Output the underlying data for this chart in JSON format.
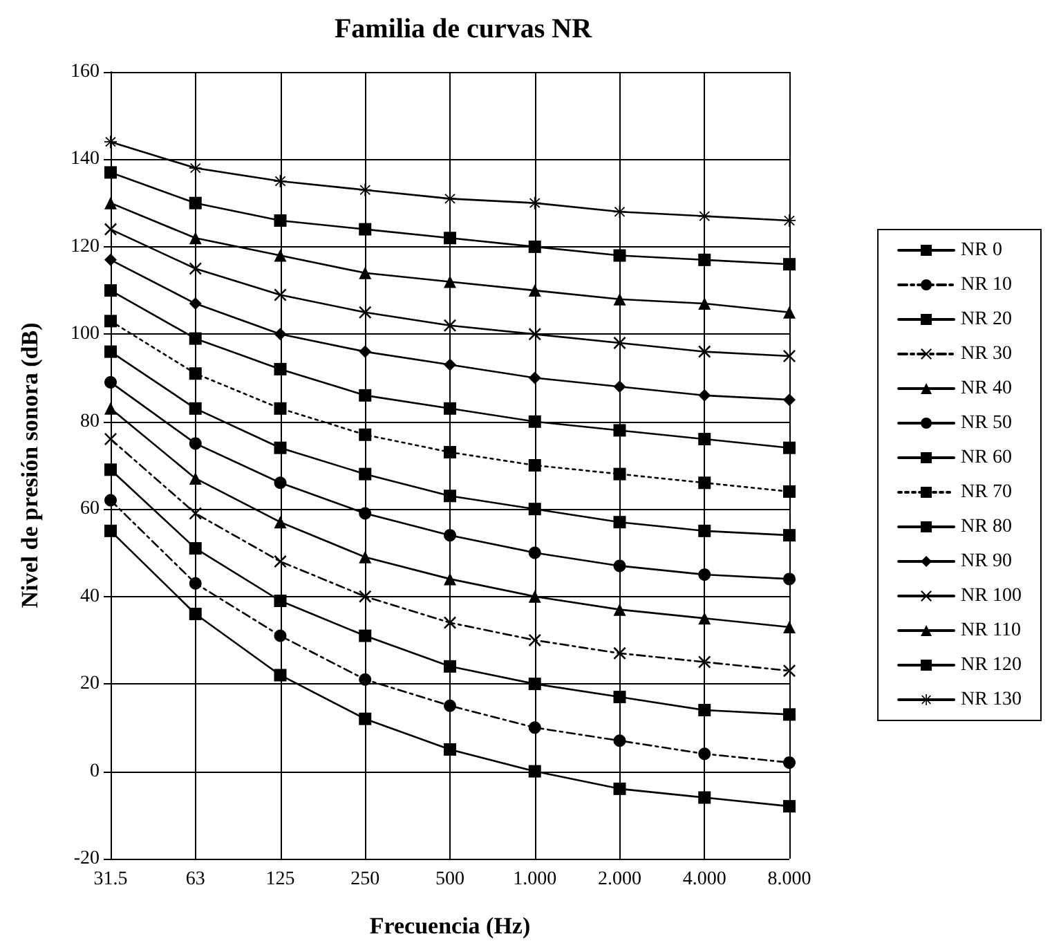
{
  "chart_data": {
    "type": "line",
    "title": "Familia de curvas NR",
    "xlabel": "Frecuencia (Hz)",
    "ylabel": "Nivel de presión sonora (dB)",
    "categories": [
      "31.5",
      "63",
      "125",
      "250",
      "500",
      "1.000",
      "2.000",
      "4.000",
      "8.000"
    ],
    "ylim": [
      -20,
      160
    ],
    "yticks": [
      -20,
      0,
      20,
      40,
      60,
      80,
      100,
      120,
      140,
      160
    ],
    "grid": true,
    "legend": "right",
    "series": [
      {
        "name": "NR 0",
        "color": "#000000",
        "marker": "square",
        "values": [
          55,
          36,
          22,
          12,
          5,
          0,
          -4,
          -6,
          -8
        ]
      },
      {
        "name": "NR 10",
        "color": "#000000",
        "marker": "circle",
        "line_style": "dashed",
        "values": [
          62,
          43,
          31,
          21,
          15,
          10,
          7,
          4,
          2
        ]
      },
      {
        "name": "NR 20",
        "color": "#000000",
        "marker": "square",
        "values": [
          69,
          51,
          39,
          31,
          24,
          20,
          17,
          14,
          13
        ]
      },
      {
        "name": "NR 30",
        "color": "#000000",
        "marker": "cross",
        "line_style": "dashed",
        "values": [
          76,
          59,
          48,
          40,
          34,
          30,
          27,
          25,
          23
        ]
      },
      {
        "name": "NR 40",
        "color": "#000000",
        "marker": "triangle",
        "values": [
          83,
          67,
          57,
          49,
          44,
          40,
          37,
          35,
          33
        ]
      },
      {
        "name": "NR 50",
        "color": "#000000",
        "marker": "circle",
        "values": [
          89,
          75,
          66,
          59,
          54,
          50,
          47,
          45,
          44
        ]
      },
      {
        "name": "NR 60",
        "color": "#000000",
        "marker": "square",
        "values": [
          96,
          83,
          74,
          68,
          63,
          60,
          57,
          55,
          54
        ]
      },
      {
        "name": "NR 70",
        "color": "#000000",
        "marker": "square",
        "line_style": "dotted",
        "values": [
          103,
          91,
          83,
          77,
          73,
          70,
          68,
          66,
          64
        ]
      },
      {
        "name": "NR 80",
        "color": "#000000",
        "marker": "square",
        "values": [
          110,
          99,
          92,
          86,
          83,
          80,
          78,
          76,
          74
        ]
      },
      {
        "name": "NR 90",
        "color": "#000000",
        "marker": "diamond",
        "values": [
          117,
          107,
          100,
          96,
          93,
          90,
          88,
          86,
          85
        ]
      },
      {
        "name": "NR 100",
        "color": "#000000",
        "marker": "cross",
        "values": [
          124,
          115,
          109,
          105,
          102,
          100,
          98,
          96,
          95
        ]
      },
      {
        "name": "NR 110",
        "color": "#000000",
        "marker": "triangle",
        "values": [
          130,
          122,
          118,
          114,
          112,
          110,
          108,
          107,
          105
        ]
      },
      {
        "name": "NR 120",
        "color": "#000000",
        "marker": "square",
        "values": [
          137,
          130,
          126,
          124,
          122,
          120,
          118,
          117,
          116
        ]
      },
      {
        "name": "NR 130",
        "color": "#000000",
        "marker": "star",
        "values": [
          144,
          138,
          135,
          133,
          131,
          130,
          128,
          127,
          126
        ]
      }
    ]
  }
}
